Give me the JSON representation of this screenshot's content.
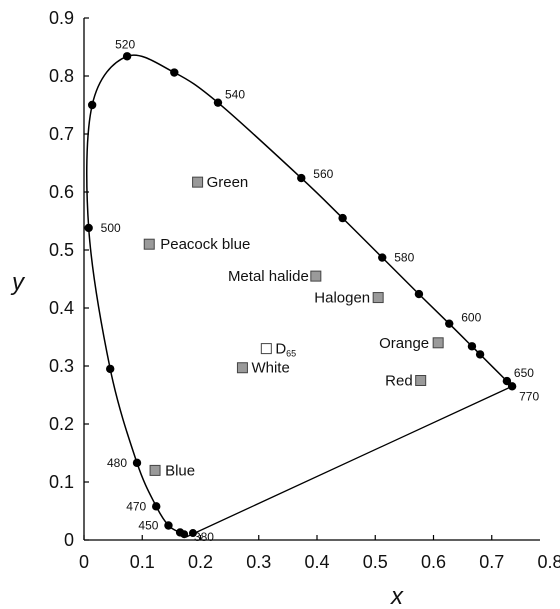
{
  "chart_data": {
    "type": "scatter",
    "title": "",
    "xlabel": "x",
    "ylabel": "y",
    "xlim": [
      0,
      0.8
    ],
    "ylim": [
      0,
      0.9
    ],
    "xticks": [
      "0",
      "0.1",
      "0.2",
      "0.3",
      "0.4",
      "0.5",
      "0.6",
      "0.7",
      "0.8"
    ],
    "yticks": [
      "0",
      "0.1",
      "0.2",
      "0.3",
      "0.4",
      "0.5",
      "0.6",
      "0.7",
      "0.8",
      "0.9"
    ],
    "grid": false,
    "locus": [
      {
        "x": 0.175,
        "y": 0.005,
        "label": "380"
      },
      {
        "x": 0.172,
        "y": 0.01
      },
      {
        "x": 0.165,
        "y": 0.013
      },
      {
        "x": 0.145,
        "y": 0.025,
        "label": "450"
      },
      {
        "x": 0.124,
        "y": 0.058,
        "label": "470"
      },
      {
        "x": 0.091,
        "y": 0.133,
        "label": "480"
      },
      {
        "x": 0.045,
        "y": 0.295
      },
      {
        "x": 0.008,
        "y": 0.538,
        "label": "500"
      },
      {
        "x": 0.014,
        "y": 0.75
      },
      {
        "x": 0.074,
        "y": 0.834,
        "label": "520"
      },
      {
        "x": 0.155,
        "y": 0.806
      },
      {
        "x": 0.23,
        "y": 0.754,
        "label": "540"
      },
      {
        "x": 0.373,
        "y": 0.624,
        "label": "560"
      },
      {
        "x": 0.444,
        "y": 0.555
      },
      {
        "x": 0.512,
        "y": 0.487,
        "label": "580"
      },
      {
        "x": 0.575,
        "y": 0.424
      },
      {
        "x": 0.627,
        "y": 0.373,
        "label": "600"
      },
      {
        "x": 0.666,
        "y": 0.334
      },
      {
        "x": 0.68,
        "y": 0.32
      },
      {
        "x": 0.726,
        "y": 0.274,
        "label": "650"
      },
      {
        "x": 0.735,
        "y": 0.265,
        "label": "770"
      }
    ],
    "sources": [
      {
        "name": "Green",
        "x": 0.195,
        "y": 0.617,
        "fill": "#9a9a9a"
      },
      {
        "name": "Peacock blue",
        "x": 0.112,
        "y": 0.51,
        "fill": "#9a9a9a"
      },
      {
        "name": "Metal halide",
        "x": 0.398,
        "y": 0.455,
        "fill": "#9a9a9a"
      },
      {
        "name": "Halogen",
        "x": 0.505,
        "y": 0.418,
        "fill": "#9a9a9a"
      },
      {
        "name": "D",
        "sub": "65",
        "x": 0.313,
        "y": 0.33,
        "fill": "#ffffff"
      },
      {
        "name": "White",
        "x": 0.272,
        "y": 0.297,
        "fill": "#9a9a9a"
      },
      {
        "name": "Orange",
        "x": 0.608,
        "y": 0.34,
        "fill": "#9a9a9a"
      },
      {
        "name": "Red",
        "x": 0.578,
        "y": 0.275,
        "fill": "#9a9a9a"
      },
      {
        "name": "Blue",
        "x": 0.122,
        "y": 0.12,
        "fill": "#9a9a9a"
      }
    ]
  }
}
